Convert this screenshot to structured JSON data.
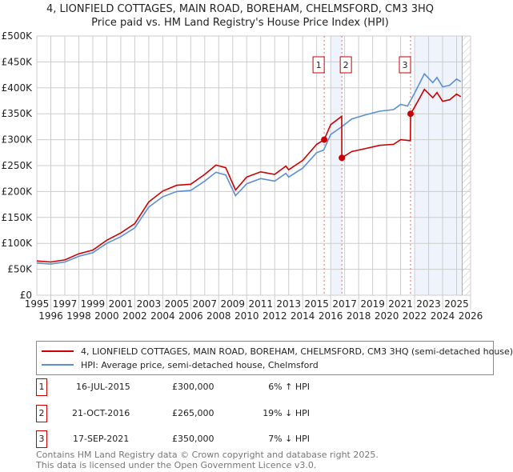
{
  "title": "4, LIONFIELD COTTAGES, MAIN ROAD, BOREHAM, CHELMSFORD, CM3 3HQ",
  "subtitle": "Price paid vs. HM Land Registry's House Price Index (HPI)",
  "chart_data": {
    "type": "line",
    "title": "4, LIONFIELD COTTAGES, MAIN ROAD, BOREHAM, CHELMSFORD, CM3 3HQ",
    "subtitle": "Price paid vs. HM Land Registry's House Price Index (HPI)",
    "xlim": [
      1995,
      2026
    ],
    "ylim": [
      0,
      500000
    ],
    "y_ticks": [
      0,
      50000,
      100000,
      150000,
      200000,
      250000,
      300000,
      350000,
      400000,
      450000,
      500000
    ],
    "y_tick_labels": [
      "£0",
      "£50K",
      "£100K",
      "£150K",
      "£200K",
      "£250K",
      "£300K",
      "£350K",
      "£400K",
      "£450K",
      "£500K"
    ],
    "x_ticks": [
      1995,
      1996,
      1997,
      1998,
      1999,
      2000,
      2001,
      2002,
      2003,
      2004,
      2005,
      2006,
      2007,
      2008,
      2009,
      2010,
      2011,
      2012,
      2013,
      2014,
      2015,
      2016,
      2017,
      2018,
      2019,
      2020,
      2021,
      2022,
      2023,
      2024,
      2025,
      2026
    ],
    "grid": true,
    "colors": {
      "price": "#cc0000",
      "hpi": "#5b8fd4"
    },
    "series": [
      {
        "name": "4, LIONFIELD COTTAGES, MAIN ROAD, BOREHAM, CHELMSFORD, CM3 3HQ (semi-detached house)",
        "x": [
          1995,
          1996,
          1997,
          1998,
          1999,
          2000,
          2001,
          2002,
          2003,
          2004,
          2005,
          2006,
          2007,
          2007.8,
          2008.5,
          2009.2,
          2010,
          2011,
          2012,
          2012.8,
          2013,
          2014,
          2015,
          2015.54,
          2016,
          2016.79,
          2016.8,
          2017.5,
          2018.5,
          2019.5,
          2020.5,
          2021,
          2021.7,
          2021.71,
          2022,
          2022.7,
          2023.3,
          2023.6,
          2024,
          2024.5,
          2025,
          2025.3
        ],
        "y": [
          66000,
          64000,
          68000,
          80000,
          87000,
          106000,
          120000,
          138000,
          180000,
          201000,
          212000,
          214000,
          233000,
          251000,
          246000,
          203000,
          228000,
          238000,
          233000,
          249000,
          242000,
          260000,
          291000,
          300000,
          329000,
          345000,
          265000,
          277000,
          283000,
          289000,
          291000,
          300000,
          298000,
          350000,
          363000,
          397000,
          381000,
          391000,
          374000,
          377000,
          388000,
          383000
        ]
      },
      {
        "name": "HPI: Average price, semi-detached house, Chelmsford",
        "x": [
          1995,
          1996,
          1997,
          1998,
          1999,
          2000,
          2001,
          2002,
          2003,
          2004,
          2005,
          2006,
          2007,
          2007.8,
          2008.5,
          2009.2,
          2010,
          2011,
          2012,
          2012.8,
          2013,
          2014,
          2015,
          2015.5,
          2016,
          2016.8,
          2017.5,
          2018.5,
          2019.5,
          2020.5,
          2021,
          2021.5,
          2022,
          2022.7,
          2023.3,
          2023.6,
          2024,
          2024.5,
          2025,
          2025.3
        ],
        "y": [
          62000,
          60000,
          64000,
          75000,
          82000,
          100000,
          113000,
          130000,
          170000,
          190000,
          200000,
          202000,
          220000,
          237000,
          232000,
          192000,
          215000,
          225000,
          220000,
          235000,
          228000,
          245000,
          275000,
          280000,
          310000,
          325000,
          340000,
          348000,
          355000,
          358000,
          368000,
          365000,
          390000,
          427000,
          410000,
          420000,
          402000,
          405000,
          417000,
          412000
        ]
      }
    ],
    "sales": [
      {
        "label": "1",
        "x": 2015.54,
        "y": 300000
      },
      {
        "label": "2",
        "x": 2016.8,
        "y": 265000
      },
      {
        "label": "3",
        "x": 2021.71,
        "y": 350000
      }
    ],
    "legend_position": "bottom"
  },
  "legend": {
    "price_label": "4, LIONFIELD COTTAGES, MAIN ROAD, BOREHAM, CHELMSFORD, CM3 3HQ (semi-detached house)",
    "hpi_label": "HPI: Average price, semi-detached house, Chelmsford"
  },
  "transactions": [
    {
      "num": "1",
      "date": "16-JUL-2015",
      "price": "£300,000",
      "hpi": "6% ↑ HPI"
    },
    {
      "num": "2",
      "date": "21-OCT-2016",
      "price": "£265,000",
      "hpi": "19% ↓ HPI"
    },
    {
      "num": "3",
      "date": "17-SEP-2021",
      "price": "£350,000",
      "hpi": "7% ↓ HPI"
    }
  ],
  "footer": {
    "line1": "Contains HM Land Registry data © Crown copyright and database right 2025.",
    "line2": "This data is licensed under the Open Government Licence v3.0."
  }
}
